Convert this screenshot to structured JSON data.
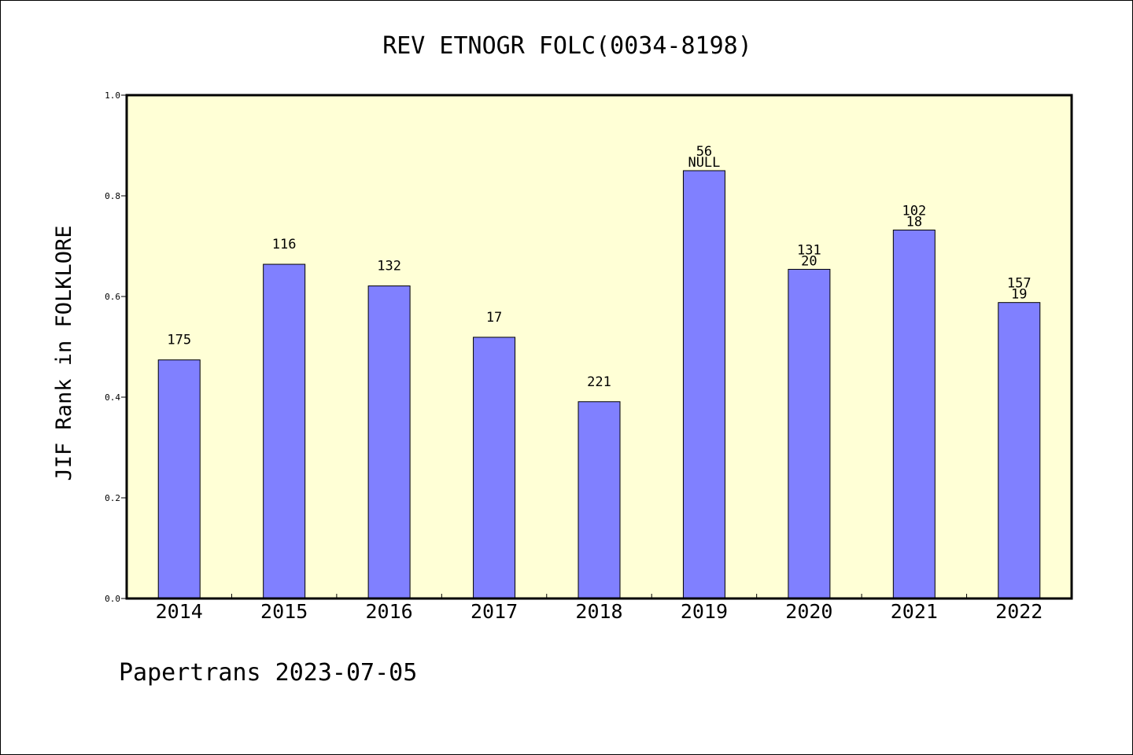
{
  "chart_data": {
    "type": "bar",
    "title": "REV ETNOGR FOLC(0034-8198)",
    "xlabel": "",
    "ylabel": "JIF Rank in FOLKLORE",
    "ylim": [
      0,
      1.0
    ],
    "yticks": [
      "0.0",
      "0.2",
      "0.4",
      "0.6",
      "0.8",
      "1.0"
    ],
    "grid": false,
    "categories": [
      "2014",
      "2015",
      "2016",
      "2017",
      "2018",
      "2019",
      "2020",
      "2021",
      "2022"
    ],
    "values": [
      0.474,
      0.664,
      0.621,
      0.519,
      0.391,
      0.85,
      0.654,
      0.732,
      0.588
    ],
    "top_labels": [
      "175",
      "116",
      "132",
      "17",
      "221",
      "56",
      "131",
      "102",
      "157"
    ],
    "bottom_labels": [
      "",
      "",
      "",
      "",
      "",
      "NULL",
      "20",
      "18",
      "19"
    ],
    "colors": {
      "bar": "#8080ff",
      "plot_background": "#ffffd6",
      "axis": "#000000"
    }
  },
  "footer": {
    "text": "Papertrans 2023-07-05"
  }
}
